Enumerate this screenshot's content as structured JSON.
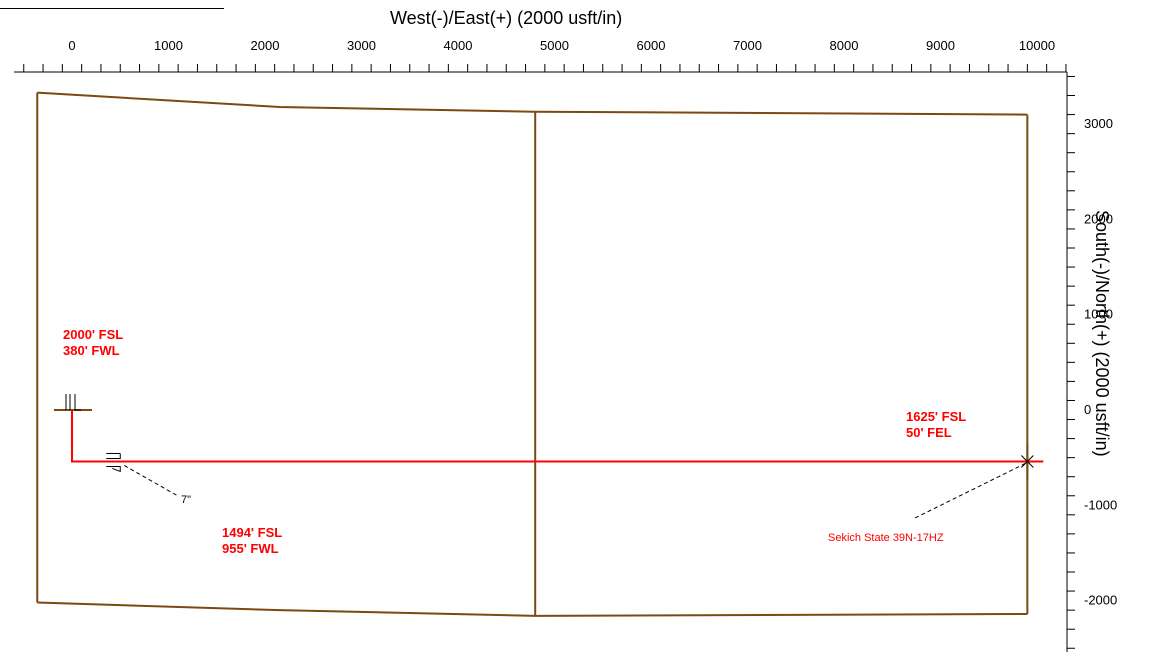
{
  "chart_data": {
    "type": "plan-view",
    "xlabel": "West(-)/East(+) (2000 usft/in)",
    "ylabel": "South(-)/North(+) (2000 usft/in)",
    "xlim": [
      -560,
      10360
    ],
    "ylim": [
      -2460,
      3490
    ],
    "x_ticks": [
      0,
      1000,
      2000,
      3000,
      4000,
      5000,
      6000,
      7000,
      8000,
      9000,
      10000
    ],
    "y_ticks": [
      3000,
      2000,
      1000,
      0,
      -1000,
      -2000
    ],
    "x_tick_labels": [
      "0",
      "1000",
      "2000",
      "3000",
      "4000",
      "5000",
      "6000",
      "7000",
      "8000",
      "9000",
      "10000"
    ],
    "y_tick_labels": [
      "3000",
      "2000",
      "1000",
      "0",
      "-1000",
      "-2000"
    ],
    "section_lines": {
      "color": "#7a4a12",
      "segments": [
        [
          [
            -360,
            3330
          ],
          [
            2150,
            3180
          ],
          [
            4800,
            3130
          ],
          [
            9900,
            3100
          ]
        ],
        [
          [
            -360,
            -2020
          ],
          [
            2150,
            -2100
          ],
          [
            4800,
            -2160
          ],
          [
            9900,
            -2140
          ]
        ],
        [
          [
            -360,
            3330
          ],
          [
            -360,
            -2020
          ]
        ],
        [
          [
            4800,
            3130
          ],
          [
            4800,
            -2160
          ]
        ],
        [
          [
            9900,
            3100
          ],
          [
            9900,
            -2140
          ]
        ]
      ]
    },
    "well_path": {
      "name": "Sekich State 39N-17HZ",
      "color": "#ff0000",
      "points": [
        [
          0,
          0
        ],
        [
          0,
          -540
        ],
        [
          9900,
          -540
        ]
      ]
    },
    "annotations": [
      {
        "id": "surface",
        "line1": "2000' FSL",
        "line2": "380' FWL"
      },
      {
        "id": "landing",
        "line1": "1494' FSL",
        "line2": "955' FWL"
      },
      {
        "id": "bottom",
        "line1": "1625' FSL",
        "line2": "50' FEL"
      }
    ],
    "casing_label": "7\""
  }
}
